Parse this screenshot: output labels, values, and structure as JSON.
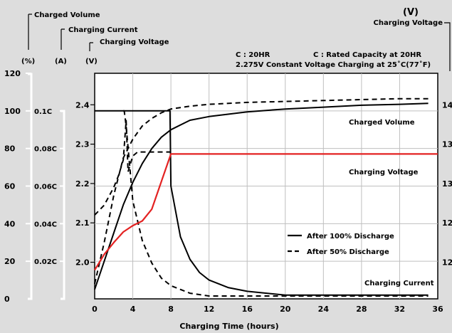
{
  "chart_data": {
    "type": "line",
    "title": "",
    "xlabel": "Charging Time (hours)",
    "xticks": [
      "0",
      "4",
      "8",
      "12",
      "16",
      "20",
      "24",
      "28",
      "32",
      "36"
    ],
    "xlim": [
      0,
      36
    ],
    "axes": {
      "volume": {
        "title": "Charged Volume",
        "unit": "(%)",
        "ticks": [
          "0",
          "20",
          "40",
          "60",
          "80",
          "100",
          "120"
        ],
        "range": [
          0,
          120
        ]
      },
      "current": {
        "title": "Charging Current",
        "unit": "(A)",
        "ticks": [
          "0.02C",
          "0.04C",
          "0.06C",
          "0.08C",
          "0.1C"
        ],
        "range": [
          0,
          0.12
        ]
      },
      "voltage_left": {
        "title": "Charging Voltage",
        "unit": "(V)",
        "ticks": [
          "2.0",
          "2.1",
          "2.2",
          "2.3",
          "2.4"
        ],
        "range": [
          1.907,
          2.48
        ]
      },
      "voltage_right": {
        "title": "Charging Voltage",
        "unit": "(V)",
        "ticks": [
          "14",
          "13",
          "13",
          "12",
          "12"
        ]
      }
    },
    "notes": [
      "C : 20HR",
      "C : Rated Capacity at 20HR",
      "2.275V Constant Voltage Charging at 25˚C(77˚F)"
    ],
    "legend": {
      "solid": "After 100% Discharge",
      "dashed": "After 50% Discharge",
      "placement": "lower-right"
    },
    "curve_labels": {
      "volume": "Charged Volume",
      "voltage": "Charging Voltage",
      "current": "Charging Current"
    },
    "grid": true,
    "series": [
      {
        "group": "volume",
        "style": "solid",
        "color": "#000000",
        "points": [
          [
            0,
            5
          ],
          [
            1,
            20
          ],
          [
            2,
            35
          ],
          [
            3,
            50
          ],
          [
            4,
            62
          ],
          [
            5,
            72
          ],
          [
            6,
            80
          ],
          [
            7,
            86
          ],
          [
            8,
            90
          ],
          [
            10,
            95
          ],
          [
            12,
            97
          ],
          [
            16,
            99.5
          ],
          [
            20,
            101
          ],
          [
            24,
            102
          ],
          [
            28,
            103
          ],
          [
            32,
            103.5
          ],
          [
            35,
            104
          ]
        ]
      },
      {
        "group": "volume",
        "style": "dashed",
        "color": "#000000",
        "points": [
          [
            0,
            8
          ],
          [
            1,
            30
          ],
          [
            2,
            55
          ],
          [
            3,
            75
          ],
          [
            4,
            85
          ],
          [
            5,
            92
          ],
          [
            6,
            96
          ],
          [
            7,
            99
          ],
          [
            8,
            101
          ],
          [
            10,
            102.5
          ],
          [
            12,
            103.5
          ],
          [
            16,
            104.5
          ],
          [
            20,
            105
          ],
          [
            24,
            105.5
          ],
          [
            28,
            106
          ],
          [
            32,
            106.5
          ],
          [
            35,
            106.5
          ]
        ]
      },
      {
        "group": "current",
        "style": "solid",
        "color": "#000000",
        "points": [
          [
            0,
            0.1
          ],
          [
            7.8,
            0.1
          ],
          [
            7.9,
            0.1
          ],
          [
            8,
            0.06
          ],
          [
            9,
            0.033
          ],
          [
            10,
            0.021
          ],
          [
            11,
            0.014
          ],
          [
            12,
            0.01
          ],
          [
            14,
            0.006
          ],
          [
            16,
            0.004
          ],
          [
            20,
            0.002
          ],
          [
            24,
            0.002
          ],
          [
            28,
            0.002
          ],
          [
            32,
            0.002
          ],
          [
            35,
            0.002
          ]
        ]
      },
      {
        "group": "current",
        "style": "dashed",
        "color": "#000000",
        "points": [
          [
            3,
            0.1
          ],
          [
            3.1,
            0.1
          ],
          [
            3.3,
            0.092
          ],
          [
            4,
            0.052
          ],
          [
            5,
            0.031
          ],
          [
            6,
            0.019
          ],
          [
            7,
            0.011
          ],
          [
            8,
            0.007
          ],
          [
            10,
            0.003
          ],
          [
            12,
            0.0015
          ],
          [
            16,
            0.0015
          ],
          [
            20,
            0.0015
          ],
          [
            24,
            0.0015
          ],
          [
            28,
            0.0015
          ],
          [
            32,
            0.0015
          ],
          [
            35,
            0.0015
          ]
        ]
      },
      {
        "group": "voltage",
        "style": "solid",
        "color": "#e32222",
        "points": [
          [
            0,
            1.98
          ],
          [
            1,
            2.02
          ],
          [
            2,
            2.05
          ],
          [
            3,
            2.077
          ],
          [
            4,
            2.093
          ],
          [
            5,
            2.105
          ],
          [
            6,
            2.135
          ],
          [
            7,
            2.205
          ],
          [
            8,
            2.275
          ],
          [
            12,
            2.275
          ],
          [
            16,
            2.275
          ],
          [
            20,
            2.275
          ],
          [
            24,
            2.275
          ],
          [
            28,
            2.275
          ],
          [
            32,
            2.275
          ],
          [
            36,
            2.275
          ]
        ]
      },
      {
        "group": "voltage",
        "style": "dashed",
        "color": "#000000",
        "points": [
          [
            0,
            2.12
          ],
          [
            1,
            2.145
          ],
          [
            2,
            2.19
          ],
          [
            2.5,
            2.22
          ],
          [
            3,
            2.26
          ],
          [
            3.3,
            2.36
          ],
          [
            3.5,
            2.23
          ],
          [
            4,
            2.27
          ],
          [
            4.5,
            2.28
          ],
          [
            8,
            2.28
          ]
        ]
      }
    ]
  }
}
